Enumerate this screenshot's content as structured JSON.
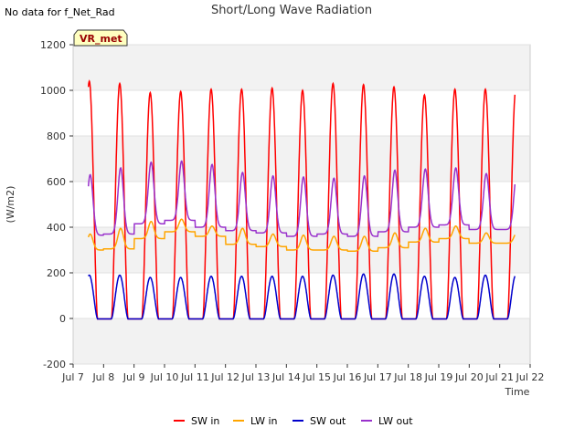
{
  "chart_data": {
    "type": "line",
    "title": "Short/Long Wave Radiation",
    "note": "No data for f_Net_Rad",
    "badge": "VR_met",
    "xlabel": "Time",
    "ylabel": "(W/m2)",
    "xlim": [
      7,
      22
    ],
    "ylim": [
      -200,
      1200
    ],
    "x_ticks": [
      {
        "v": 7,
        "label": "Jul 7"
      },
      {
        "v": 8,
        "label": "Jul 8"
      },
      {
        "v": 9,
        "label": "Jul 9"
      },
      {
        "v": 10,
        "label": "Jul 10"
      },
      {
        "v": 11,
        "label": "Jul 11"
      },
      {
        "v": 12,
        "label": "Jul 12"
      },
      {
        "v": 13,
        "label": "Jul 13"
      },
      {
        "v": 14,
        "label": "Jul 14"
      },
      {
        "v": 15,
        "label": "Jul 15"
      },
      {
        "v": 16,
        "label": "Jul 16"
      },
      {
        "v": 17,
        "label": "Jul 17"
      },
      {
        "v": 18,
        "label": "Jul 18"
      },
      {
        "v": 19,
        "label": "Jul 19"
      },
      {
        "v": 20,
        "label": "Jul 20"
      },
      {
        "v": 21,
        "label": "Jul 21"
      },
      {
        "v": 22,
        "label": "Jul 22"
      }
    ],
    "y_ticks": [
      {
        "v": -200,
        "label": "-200"
      },
      {
        "v": 0,
        "label": "0"
      },
      {
        "v": 200,
        "label": "200"
      },
      {
        "v": 400,
        "label": "400"
      },
      {
        "v": 600,
        "label": "600"
      },
      {
        "v": 800,
        "label": "800"
      },
      {
        "v": 1000,
        "label": "1000"
      },
      {
        "v": 1200,
        "label": "1200"
      }
    ],
    "x_range": [
      7.5,
      21.5
    ],
    "series": [
      {
        "name": "SW in",
        "color": "#ff0000",
        "base": 0,
        "daily_peak": [
          1040,
          1030,
          990,
          995,
          1005,
          1005,
          1010,
          1000,
          1030,
          1025,
          1015,
          980,
          1005,
          1005
        ]
      },
      {
        "name": "LW in",
        "color": "#ffa500",
        "base": null,
        "daily_min": [
          300,
          305,
          350,
          380,
          360,
          325,
          315,
          300,
          300,
          295,
          310,
          335,
          350,
          330
        ],
        "daily_peak": [
          370,
          395,
          425,
          435,
          405,
          395,
          370,
          365,
          360,
          360,
          375,
          395,
          405,
          375
        ]
      },
      {
        "name": "SW out",
        "color": "#0000cc",
        "base": 0,
        "daily_peak": [
          190,
          190,
          180,
          180,
          185,
          185,
          185,
          185,
          190,
          195,
          195,
          185,
          180,
          190
        ]
      },
      {
        "name": "LW out",
        "color": "#9932cc",
        "base": null,
        "daily_min": [
          365,
          370,
          415,
          430,
          400,
          385,
          375,
          360,
          370,
          360,
          380,
          400,
          410,
          390
        ],
        "daily_peak": [
          630,
          660,
          685,
          690,
          675,
          640,
          625,
          620,
          615,
          625,
          650,
          655,
          660,
          635
        ]
      }
    ],
    "bands": [
      [
        -200,
        0
      ],
      [
        200,
        400
      ],
      [
        600,
        800
      ],
      [
        1000,
        1200
      ]
    ],
    "grid": true,
    "legend_placement": "bottom-center"
  }
}
